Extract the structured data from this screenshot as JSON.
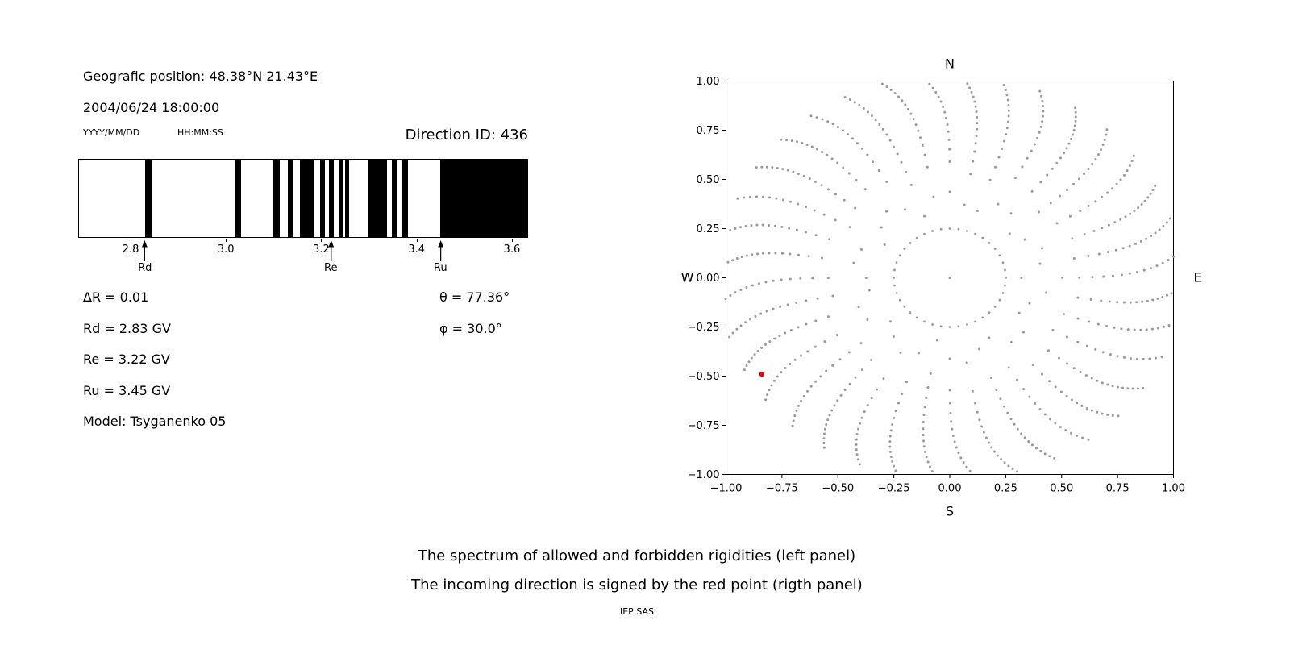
{
  "header": {
    "position": "Geografic position: 48.38°N 21.43°E",
    "datetime": "2004/06/24 18:00:00",
    "date_format_label": "YYYY/MM/DD",
    "time_format_label": "HH:MM:SS",
    "direction_id": "Direction ID: 436"
  },
  "params": {
    "delta_r": "ΔR = 0.01",
    "rd": "Rd = 2.83 GV",
    "re": "Re = 3.22 GV",
    "ru": "Ru = 3.45 GV",
    "model": "Model: Tsyganenko 05",
    "theta": "θ = 77.36°",
    "phi": "φ = 30.0°"
  },
  "caption": {
    "line1": "The spectrum of allowed and forbidden rigidities (left panel)",
    "line2": "The incoming direction is signed by the red point (rigth panel)",
    "credit": "IEP SAS"
  },
  "chart_data": [
    {
      "type": "bar",
      "name": "rigidity-spectrum",
      "x_range": [
        2.69,
        3.634
      ],
      "x_ticks": [
        2.8,
        3.0,
        3.2,
        3.4,
        3.6
      ],
      "x_tick_labels": [
        "2.8",
        "3.0",
        "3.2",
        "3.4",
        "3.6"
      ],
      "band_color": "#000000",
      "forbidden_bands": [
        [
          2.83,
          2.842
        ],
        [
          3.019,
          3.032
        ],
        [
          3.1,
          3.113
        ],
        [
          3.129,
          3.141
        ],
        [
          3.156,
          3.186
        ],
        [
          3.198,
          3.208
        ],
        [
          3.217,
          3.227
        ],
        [
          3.236,
          3.244
        ],
        [
          3.251,
          3.259
        ],
        [
          3.297,
          3.339
        ],
        [
          3.349,
          3.359
        ],
        [
          3.371,
          3.383
        ],
        [
          3.451,
          3.634
        ]
      ],
      "markers": [
        {
          "label": "Rd",
          "value": 2.83
        },
        {
          "label": "Re",
          "value": 3.22
        },
        {
          "label": "Ru",
          "value": 3.45
        }
      ]
    },
    {
      "type": "scatter",
      "name": "incoming-direction-map",
      "xlim": [
        -1,
        1
      ],
      "ylim": [
        -1,
        1
      ],
      "x_tick_values": [
        -1.0,
        -0.75,
        -0.5,
        -0.25,
        0.0,
        0.25,
        0.5,
        0.75,
        1.0
      ],
      "x_tick_labels": [
        "−1.00",
        "−0.75",
        "−0.50",
        "−0.25",
        "0.00",
        "0.25",
        "0.50",
        "0.75",
        "1.00"
      ],
      "y_tick_values": [
        1.0,
        0.75,
        0.5,
        0.25,
        0.0,
        -0.25,
        -0.5,
        -0.75,
        -1.0
      ],
      "y_tick_labels": [
        "1.00",
        "0.75",
        "0.50",
        "0.25",
        "0.00",
        "−0.25",
        "−0.50",
        "−0.75",
        "−1.00"
      ],
      "direction_labels": {
        "top": "N",
        "right": "E",
        "bottom": "S",
        "left": "W"
      },
      "dot_color": "#999999",
      "red_point": {
        "x": -0.84,
        "y": -0.49,
        "color": "#dd0000"
      },
      "pattern": {
        "spoke_count": 36,
        "spoke_step_deg": 10,
        "r_min": 0.38,
        "r_max": 1.03,
        "points_per_spoke": 16,
        "curve_deg": 7,
        "inner_ring_radius": 0.25,
        "inner_ring_points": 40,
        "center_point": true
      }
    }
  ]
}
